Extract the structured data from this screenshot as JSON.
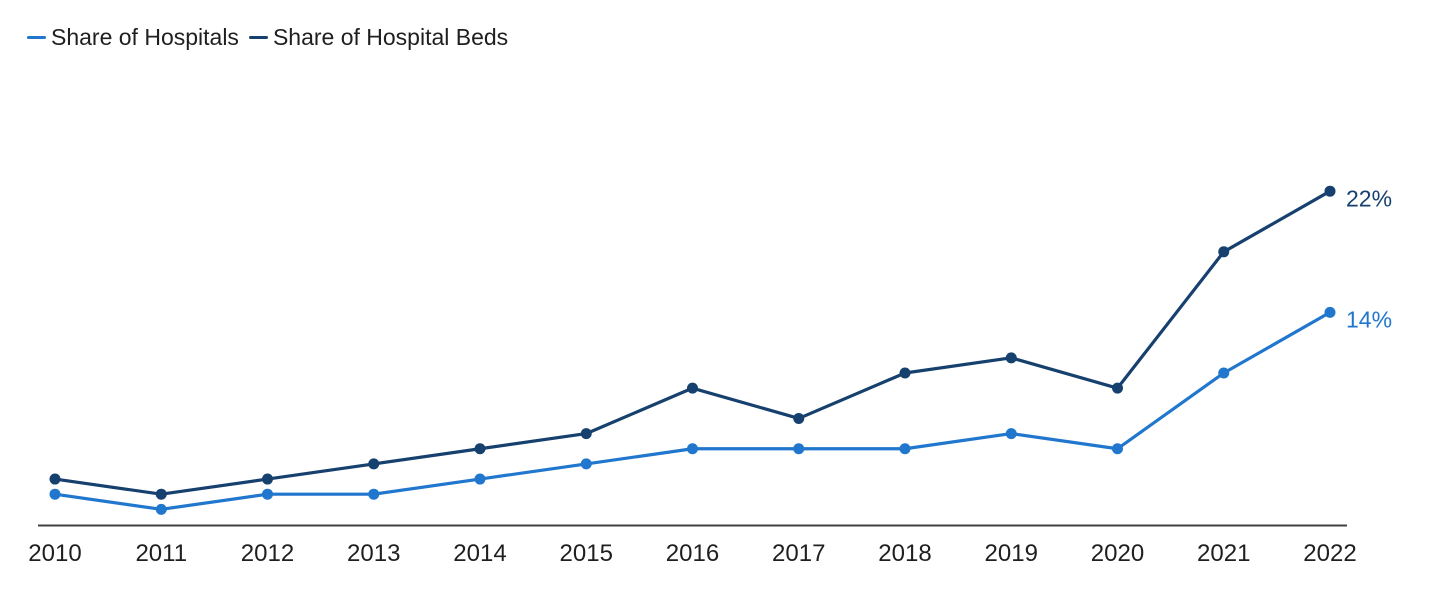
{
  "legend": {
    "items": [
      {
        "label": "Share of Hospitals",
        "color": "#2077cd"
      },
      {
        "label": "Share of Hospital Beds",
        "color": "#16406e"
      }
    ]
  },
  "chart_data": {
    "type": "line",
    "x": [
      2010,
      2011,
      2012,
      2013,
      2014,
      2015,
      2016,
      2017,
      2018,
      2019,
      2020,
      2021,
      2022
    ],
    "series": [
      {
        "name": "Share of Hospitals",
        "color": "#2077cd",
        "values": [
          2,
          1,
          2,
          2,
          3,
          4,
          5,
          5,
          5,
          6,
          5,
          10,
          14
        ],
        "end_label": "14%"
      },
      {
        "name": "Share of Hospital Beds",
        "color": "#16406e",
        "values": [
          3,
          2,
          3,
          4,
          5,
          6,
          9,
          7,
          10,
          11,
          9,
          18,
          22
        ],
        "end_label": "22%"
      }
    ],
    "title": "",
    "xlabel": "",
    "ylabel": "",
    "ylim": [
      0,
      26
    ],
    "grid": false,
    "y_axis_shown": false,
    "legend_position": "top-left",
    "axis_color": "#404040",
    "text_color": "#1f1f1f"
  }
}
